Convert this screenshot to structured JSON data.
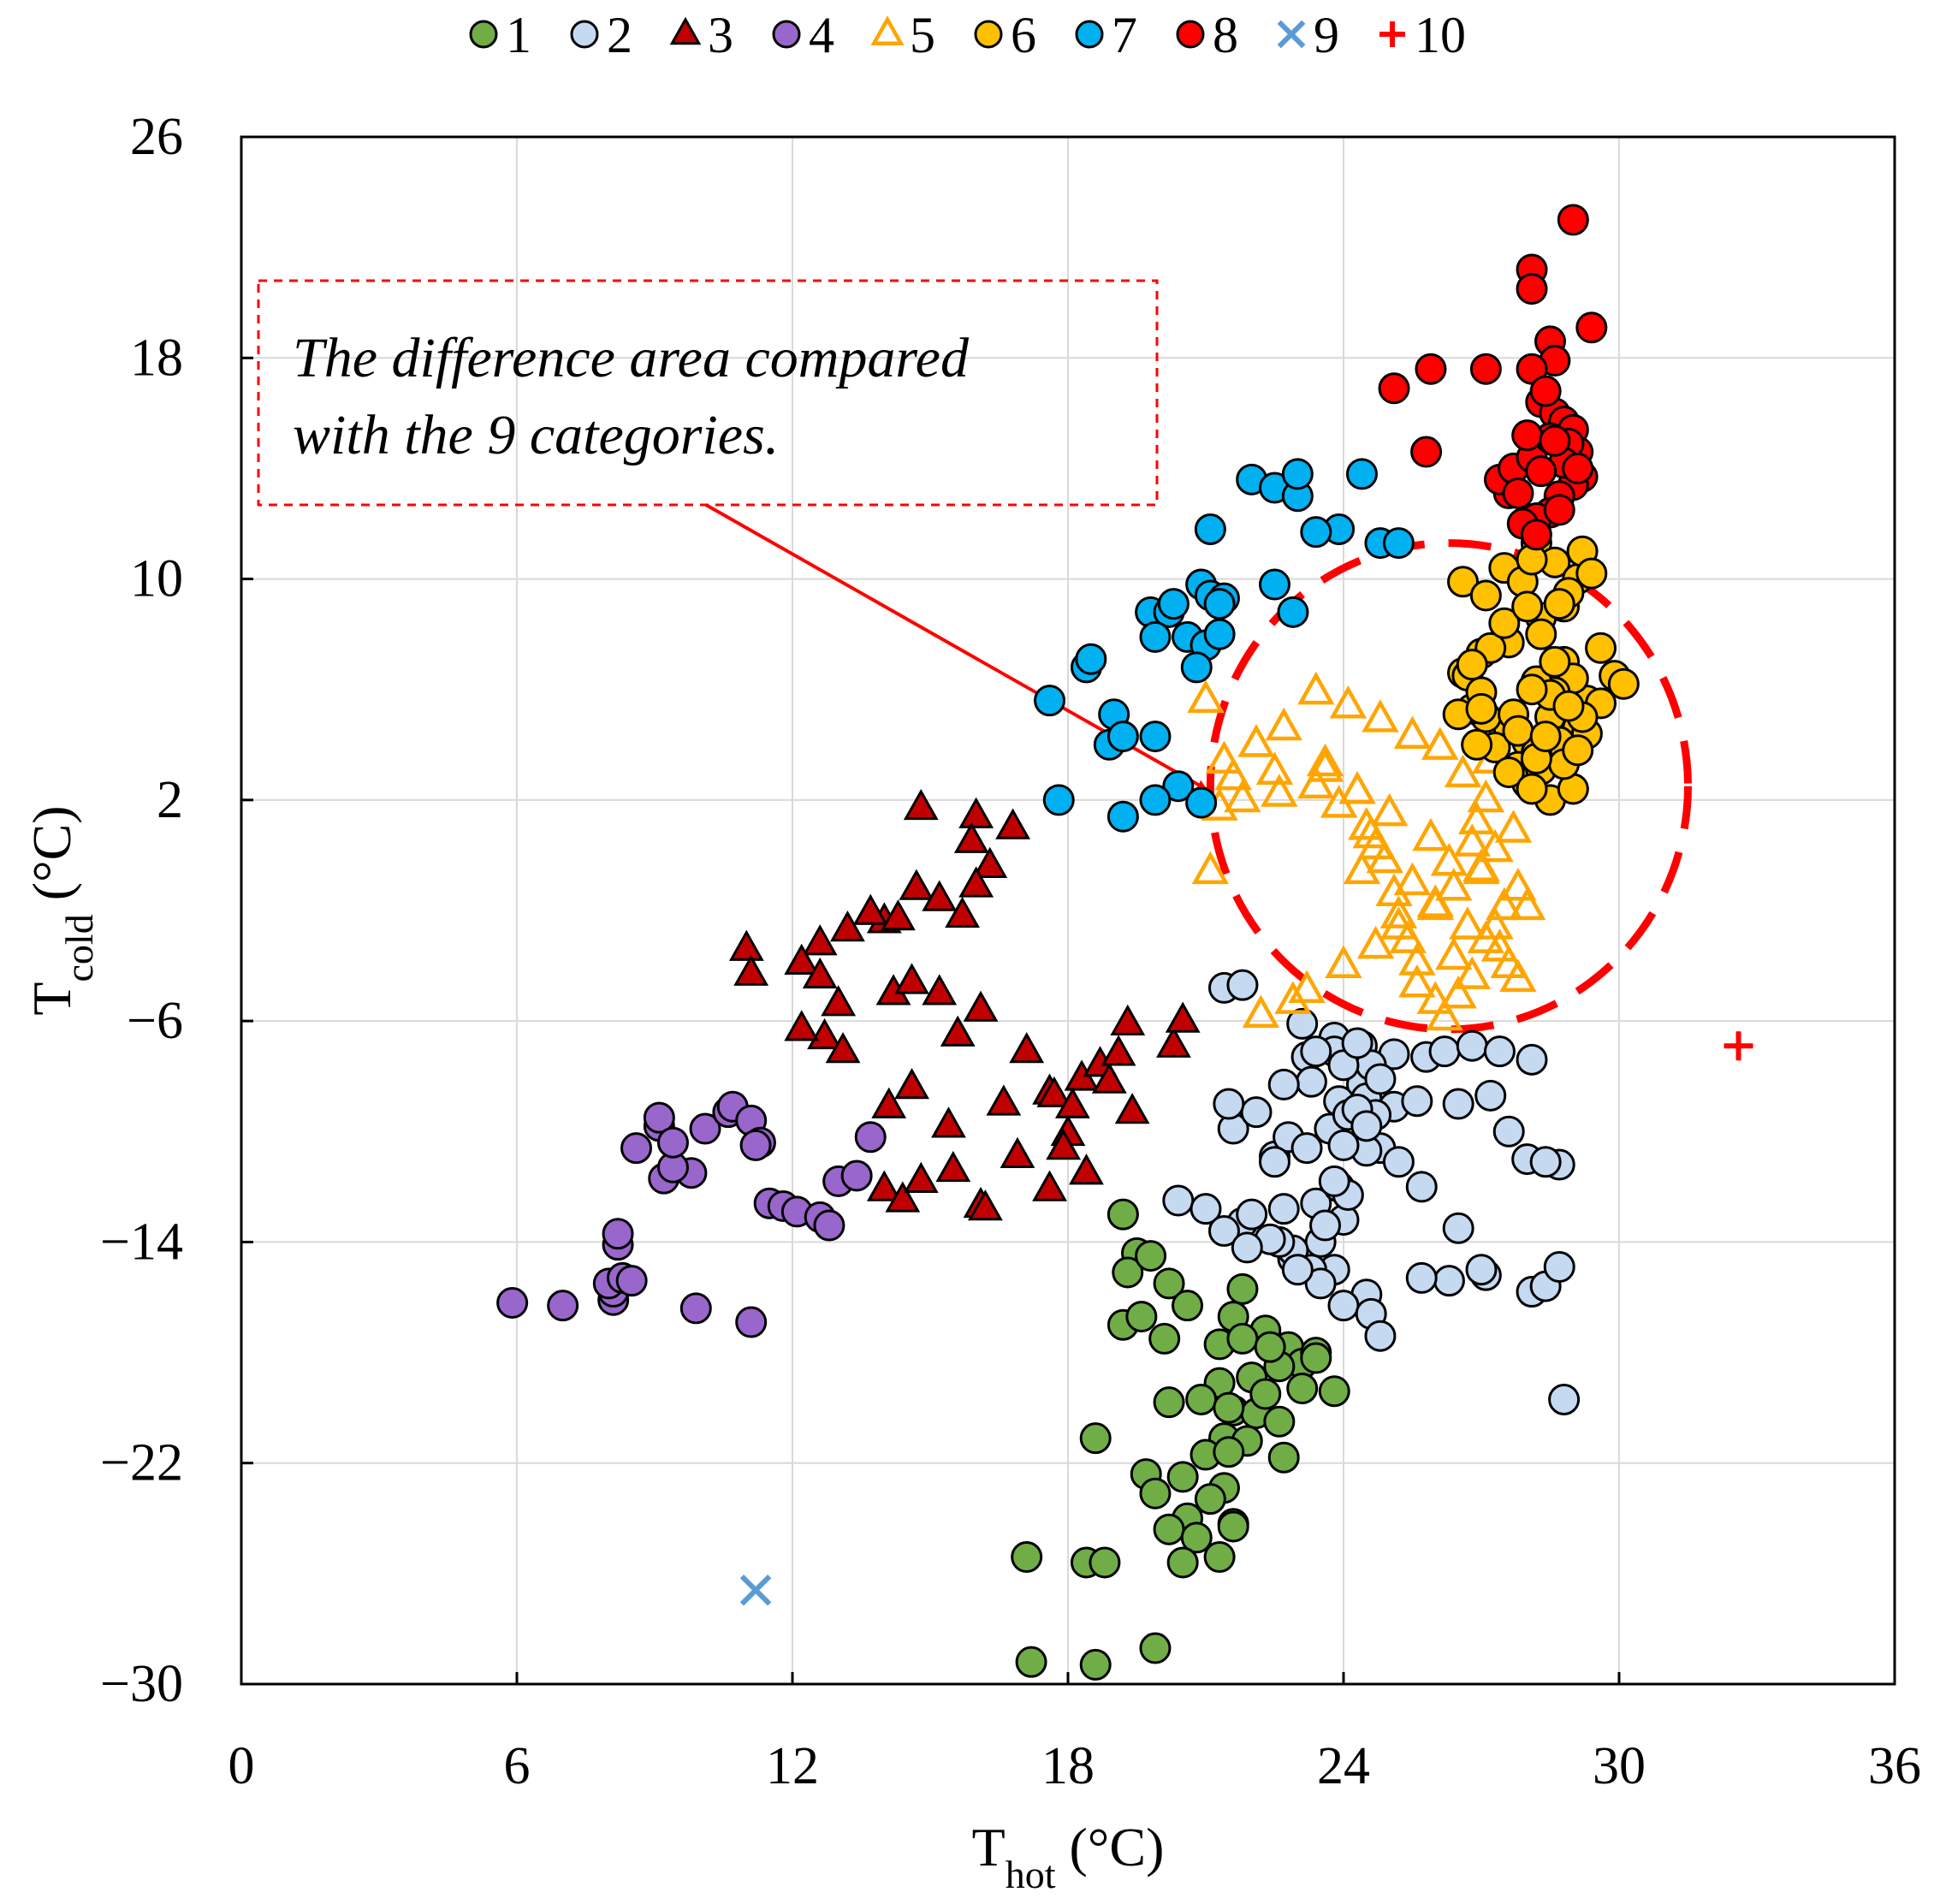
{
  "chart_data": {
    "type": "scatter",
    "title": "",
    "xlabel": "T",
    "xlabel_sub": "hot",
    "xlabel_unit": " (°C)",
    "ylabel": "T",
    "ylabel_sub": "cold",
    "ylabel_unit": " (°C)",
    "xlim": [
      0,
      36
    ],
    "ylim": [
      -30,
      26
    ],
    "x_ticks": [
      "0",
      "6",
      "12",
      "18",
      "24",
      "30",
      "36"
    ],
    "y_ticks": [
      "−30",
      "−22",
      "−14",
      "−6",
      "2",
      "10",
      "18",
      "26"
    ],
    "x_tick_values": [
      0,
      6,
      12,
      18,
      24,
      30,
      36
    ],
    "y_tick_values": [
      -30,
      -22,
      -14,
      -6,
      2,
      10,
      18,
      26
    ],
    "grid": true,
    "legend_position": "top",
    "legend": [
      "1",
      "2",
      "3",
      "4",
      "5",
      "6",
      "7",
      "8",
      "9",
      "10"
    ],
    "annotation": {
      "lines": [
        "The difference area compared",
        "with the 9 categories."
      ],
      "arrow_target": [
        21,
        2.4
      ],
      "circle_center": [
        26.3,
        2.5
      ],
      "circle_radius_x": 5.2,
      "circle_radius_y": 8.8
    },
    "series": [
      {
        "name": "1",
        "marker": "circle",
        "fill": "#70ad47",
        "stroke": "#000000",
        "x": [
          19.2,
          19.5,
          19.3,
          19.8,
          20.2,
          20.6,
          21.6,
          21.8,
          22.3,
          22.8,
          23.1,
          23.8,
          21.3,
          20.9,
          21.6,
          22.0,
          22.6,
          23.4,
          21.4,
          19.2,
          19.6,
          20.1,
          21.3,
          21.0,
          21.9,
          22.7,
          18.6,
          20.5,
          19.7,
          21.4,
          20.6,
          19.9,
          21.1,
          21.6,
          20.2,
          20.8,
          21.6,
          17.1,
          18.4,
          18.8,
          20.5,
          21.3,
          17.2,
          18.6,
          19.9,
          21.8,
          22.4,
          23.4,
          22.1,
          20.2,
          21.5,
          22.3,
          23.1,
          22.6,
          21.5
        ],
        "y": [
          -13.0,
          -14.4,
          -15.1,
          -14.5,
          -15.5,
          -16.3,
          -16.7,
          -15.7,
          -17.2,
          -17.8,
          -18.4,
          -19.4,
          -19.1,
          -19.7,
          -20.1,
          -18.9,
          -18.5,
          -18.0,
          -21.1,
          -17.0,
          -16.7,
          -17.5,
          -17.7,
          -21.7,
          -21.2,
          -21.8,
          -21.1,
          -22.5,
          -22.4,
          -22.9,
          -24.0,
          -23.1,
          -23.3,
          -24.2,
          -24.4,
          -24.7,
          -24.3,
          -25.4,
          -25.6,
          -25.6,
          -25.6,
          -25.4,
          -29.2,
          -29.3,
          -28.7,
          -17.5,
          -17.8,
          -18.2,
          -20.2,
          -19.8,
          -20.0,
          -19.5,
          -19.3,
          -20.5,
          -21.6
        ]
      },
      {
        "name": "2",
        "marker": "circle",
        "fill": "#c5d9f1",
        "stroke": "#000000",
        "x": [
          21.4,
          21.8,
          23.1,
          23.8,
          24.4,
          23.2,
          24.4,
          23.9,
          23.3,
          24.7,
          23.7,
          24.8,
          25.8,
          26.2,
          25.1,
          24.6,
          26.8,
          27.4,
          26.5,
          28.1,
          28.0,
          28.7,
          28.4,
          26.3,
          27.1,
          27.0,
          28.1,
          27.6,
          27.2,
          21.6,
          22.5,
          22.8,
          23.2,
          22.5,
          21.8,
          23.4,
          23.9,
          24.0,
          23.5,
          22.9,
          23.8,
          24.5,
          25.2,
          24.5,
          24.1,
          23.6,
          22.9,
          23.3,
          23.5,
          24.0,
          24.6,
          24.8,
          22.6,
          23.0,
          24.1,
          22.1,
          21.5,
          20.4,
          21.0,
          21.4,
          22.4,
          22.0,
          22.7,
          21.9,
          24.5,
          25.1,
          25.6,
          24.7,
          24.8,
          23.8,
          24.0,
          24.3,
          23.8,
          22.7,
          23.4,
          24.3,
          24.5,
          24.0,
          25.7,
          25.7,
          26.5,
          28.4,
          28.7,
          28.8
        ],
        "y": [
          -4.8,
          -4.7,
          -6.1,
          -6.6,
          -6.9,
          -7.3,
          -8.3,
          -8.9,
          -8.2,
          -9.3,
          -9.9,
          -10.6,
          -7.3,
          -7.1,
          -7.2,
          -7.6,
          -6.9,
          -7.1,
          -9.0,
          -7.4,
          -11.0,
          -11.2,
          -11.1,
          -15.4,
          -15.2,
          -15.0,
          -15.8,
          -10.0,
          -8.7,
          -9.9,
          -10.9,
          -10.2,
          -10.6,
          -11.1,
          -13.3,
          -12.6,
          -12.0,
          -13.2,
          -14.0,
          -14.6,
          -15.0,
          -15.9,
          -11.1,
          -10.7,
          -12.3,
          -13.4,
          -14.3,
          -15.0,
          -15.5,
          -16.3,
          -16.6,
          -17.4,
          -14.0,
          -15.0,
          -9.4,
          -9.3,
          -9.0,
          -12.5,
          -12.8,
          -13.6,
          -13.9,
          -13.0,
          -12.8,
          -14.2,
          -8.8,
          -9.1,
          -8.9,
          -9.4,
          -8.1,
          -7.1,
          -7.6,
          -6.8,
          -11.8,
          -8.3,
          -7.1,
          -9.2,
          -9.8,
          -10.5,
          -12.0,
          -15.3,
          -13.5,
          -15.6,
          -14.9,
          -19.7
        ]
      },
      {
        "name": "3",
        "marker": "triangle",
        "fill": "#c00000",
        "stroke": "#000000",
        "x": [
          14.8,
          16.0,
          16.8,
          15.9,
          16.3,
          16.0,
          14.7,
          14.0,
          15.2,
          15.7,
          13.7,
          14.3,
          13.2,
          12.6,
          12.2,
          12.6,
          11.0,
          11.1,
          13.0,
          14.2,
          14.6,
          15.2,
          16.1,
          12.7,
          13.1,
          14.6,
          14.1,
          12.2,
          15.6,
          17.1,
          18.3,
          17.6,
          18.7,
          19.3,
          20.3,
          20.5,
          19.1,
          18.9,
          19.4,
          18.0,
          16.9,
          15.5,
          14.0,
          14.4,
          14.8,
          16.1,
          16.2,
          17.6,
          18.4,
          17.9,
          15.4,
          16.6,
          17.7,
          18.1
        ],
        "y": [
          1.7,
          1.4,
          1.0,
          0.5,
          -0.4,
          -1.1,
          -1.2,
          -2.4,
          -1.6,
          -2.2,
          -2.1,
          -2.3,
          -2.7,
          -3.2,
          -3.9,
          -4.4,
          -3.4,
          -4.3,
          -5.4,
          -5.0,
          -4.6,
          -5.0,
          -5.6,
          -6.6,
          -7.1,
          -8.4,
          -9.1,
          -6.3,
          -6.5,
          -7.1,
          -8.1,
          -8.6,
          -7.6,
          -6.1,
          -6.9,
          -6.0,
          -7.2,
          -8.2,
          -9.3,
          -10.1,
          -10.9,
          -11.4,
          -12.1,
          -12.5,
          -11.8,
          -12.7,
          -12.8,
          -12.1,
          -11.5,
          -10.6,
          -9.8,
          -9.0,
          -8.7,
          -9.1
        ],
        "ring": false
      },
      {
        "name": "4",
        "marker": "circle",
        "fill": "#9966cc",
        "stroke": "#000000",
        "x": [
          5.9,
          7.0,
          8.1,
          8.1,
          8.2,
          8.2,
          8.6,
          9.1,
          9.1,
          9.2,
          9.8,
          10.1,
          10.6,
          10.7,
          11.1,
          11.3,
          11.2,
          11.5,
          11.8,
          12.1,
          12.6,
          12.8,
          13.0,
          13.4,
          13.7,
          9.9,
          11.1,
          9.4,
          9.4,
          8.0,
          8.3,
          8.5
        ],
        "y": [
          -16.2,
          -16.3,
          -16.1,
          -15.8,
          -14.1,
          -13.7,
          -10.6,
          -9.8,
          -9.5,
          -11.7,
          -11.5,
          -9.9,
          -9.3,
          -9.1,
          -9.6,
          -10.4,
          -10.5,
          -12.6,
          -12.7,
          -12.9,
          -13.1,
          -13.4,
          -11.8,
          -11.6,
          -10.2,
          -16.4,
          -16.9,
          -11.3,
          -10.4,
          -15.5,
          -15.3,
          -15.4
        ],
        "ring": false
      },
      {
        "name": "5",
        "marker": "triangle-open",
        "fill": "none",
        "stroke": "#ffa500",
        "x": [
          21.0,
          21.6,
          21.3,
          22.5,
          22.6,
          23.6,
          23.4,
          23.9,
          24.5,
          24.7,
          24.4,
          25.1,
          25.2,
          25.4,
          25.6,
          25.6,
          26.0,
          26.2,
          26.5,
          26.8,
          26.4,
          27.1,
          27.3,
          27.5,
          27.8,
          27.0,
          26.8,
          26.9,
          27.1,
          26.6,
          27.2,
          26.1,
          25.5,
          24.8,
          24.1,
          23.4,
          22.7,
          22.1,
          21.4,
          21.8,
          24.6,
          24.9,
          25.5,
          26.0,
          26.7,
          27.4,
          27.6,
          27.8,
          26.3,
          25.9,
          25.0,
          24.3,
          23.6,
          22.9,
          22.2,
          23.2,
          24.0,
          24.7,
          25.2,
          26.0,
          26.4,
          27.0,
          27.3,
          27.7,
          28.0,
          21.1
        ],
        "y": [
          5.6,
          2.8,
          1.7,
          3.0,
          2.2,
          3.3,
          2.5,
          1.8,
          1.0,
          0.3,
          -0.6,
          -1.4,
          -2.2,
          -3.1,
          -3.9,
          -4.7,
          -5.3,
          -5.9,
          -5.1,
          -4.4,
          -3.7,
          -3.1,
          -2.6,
          -1.9,
          -1.2,
          -0.5,
          0.4,
          1.2,
          2.0,
          2.9,
          3.4,
          3.9,
          4.3,
          4.9,
          5.4,
          5.9,
          4.6,
          4.0,
          3.4,
          2.0,
          0.7,
          -0.2,
          -1.0,
          -1.8,
          -2.6,
          -3.4,
          -4.0,
          -4.5,
          -0.3,
          0.6,
          1.5,
          2.3,
          3.1,
          -5.3,
          -5.8,
          -4.9,
          -4.0,
          -3.3,
          -2.6,
          -1.9,
          -1.2,
          -0.6,
          0.2,
          0.9,
          -1.9,
          -0.6
        ],
        "ring": false
      },
      {
        "name": "6",
        "marker": "circle",
        "fill": "#ffc000",
        "stroke": "#000000",
        "x": [
          28.2,
          28.6,
          29.1,
          29.2,
          28.8,
          29.6,
          29.3,
          28.5,
          28.0,
          27.6,
          27.1,
          26.8,
          26.6,
          27.6,
          28.3,
          28.9,
          29.4,
          29.9,
          30.1,
          29.6,
          29.1,
          28.7,
          28.2,
          27.8,
          27.3,
          28.0,
          28.5,
          29.0,
          27.0,
          26.6,
          27.5,
          27.9,
          28.3,
          28.8,
          29.0,
          28.6,
          28.2,
          27.7,
          27.8,
          28.3,
          28.8,
          29.3,
          29.2,
          28.5,
          28.1,
          28.6,
          28.7,
          27.1,
          26.5,
          26.7,
          27.2,
          27.5,
          28.0,
          28.1,
          28.2,
          27.0,
          26.9,
          27.6,
          28.1,
          27.0,
          26.8,
          28.4,
          29.1,
          28.9
        ],
        "y": [
          11.3,
          10.6,
          10.0,
          11.0,
          9.0,
          7.5,
          5.6,
          5.0,
          4.1,
          4.6,
          5.0,
          5.3,
          6.6,
          7.7,
          8.6,
          9.5,
          10.2,
          6.5,
          6.2,
          5.5,
          4.6,
          4.1,
          3.7,
          3.2,
          3.9,
          2.6,
          2.0,
          2.4,
          7.3,
          9.9,
          10.4,
          9.9,
          8.0,
          7.0,
          6.4,
          5.9,
          6.3,
          5.1,
          4.5,
          3.1,
          3.3,
          4.4,
          5.0,
          5.8,
          6.0,
          7.0,
          9.1,
          9.4,
          5.1,
          6.5,
          7.5,
          8.4,
          9.0,
          10.7,
          3.5,
          5.9,
          4.0,
          3.0,
          2.4,
          5.3,
          6.9,
          4.3,
          3.8,
          5.4
        ],
        "ring": false
      },
      {
        "name": "7",
        "marker": "circle",
        "fill": "#00b0f0",
        "stroke": "#000000",
        "x": [
          22.0,
          22.5,
          23.0,
          23.0,
          24.4,
          23.9,
          23.4,
          24.8,
          25.2,
          21.1,
          20.9,
          21.1,
          21.4,
          21.3,
          22.5,
          22.9,
          19.8,
          20.2,
          20.3,
          19.9,
          20.6,
          21.0,
          21.3,
          20.8,
          17.6,
          18.4,
          18.5,
          19.0,
          18.9,
          19.9,
          20.4,
          19.2,
          20.9,
          19.9,
          17.8,
          19.2
        ],
        "y": [
          13.6,
          13.3,
          13.0,
          13.8,
          13.8,
          11.8,
          11.7,
          11.3,
          11.3,
          11.8,
          9.8,
          9.4,
          9.3,
          9.1,
          9.8,
          8.8,
          8.8,
          8.8,
          9.1,
          7.9,
          7.9,
          7.6,
          8.0,
          6.8,
          5.6,
          6.8,
          7.1,
          5.1,
          4.0,
          4.3,
          2.5,
          1.4,
          1.9,
          2.0,
          2.0,
          4.3
        ],
        "ring": false
      },
      {
        "name": "8",
        "marker": "circle",
        "fill": "#ff0000",
        "stroke": "#000000",
        "x": [
          29.0,
          28.1,
          28.1,
          29.4,
          28.5,
          28.6,
          28.1,
          27.1,
          25.9,
          25.1,
          25.8,
          28.3,
          28.6,
          28.8,
          29.0,
          29.1,
          29.2,
          29.0,
          28.7,
          28.5,
          28.2,
          27.9,
          27.6,
          27.4,
          27.7,
          28.1,
          28.5,
          28.9,
          28.8,
          28.3,
          27.8,
          28.0,
          28.4,
          28.6,
          28.2,
          29.1,
          28.7
        ],
        "y": [
          23.0,
          21.2,
          20.5,
          19.1,
          18.6,
          17.9,
          17.6,
          17.6,
          17.6,
          16.9,
          14.6,
          16.4,
          16.0,
          15.7,
          15.4,
          14.6,
          13.7,
          13.4,
          13.0,
          12.4,
          12.2,
          12.0,
          13.1,
          13.6,
          14.0,
          14.4,
          15.1,
          14.9,
          14.2,
          13.9,
          13.1,
          15.2,
          16.8,
          15.0,
          11.6,
          14.0,
          12.5
        ],
        "ring": false
      },
      {
        "name": "9",
        "marker": "x",
        "fill": "none",
        "stroke": "#5b9bd5",
        "x": [
          11.2
        ],
        "y": [
          -26.6
        ]
      },
      {
        "name": "10",
        "marker": "plus",
        "fill": "none",
        "stroke": "#ff0000",
        "x": [
          32.6
        ],
        "y": [
          -6.9
        ]
      }
    ]
  }
}
